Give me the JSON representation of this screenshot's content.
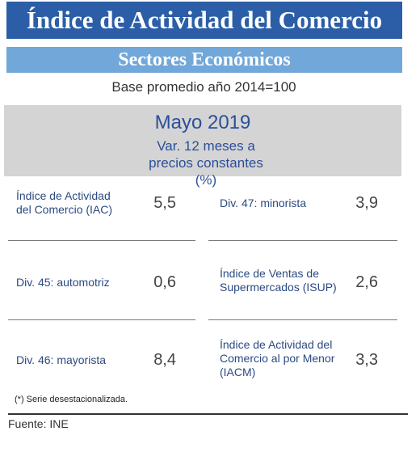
{
  "header": {
    "title": "Índice de Actividad del Comercio",
    "subtitle": "Sectores Económicos",
    "base": "Base promedio año 2014=100"
  },
  "period": {
    "title": "Mayo 2019",
    "subtitle": "Var. 12 meses a precios constantes (%)"
  },
  "items": [
    {
      "label": "Índice de Actividad del Comercio (IAC)",
      "value": "5,5"
    },
    {
      "label": "Div. 47: minorista",
      "value": "3,9"
    },
    {
      "label": "Div. 45: automotriz",
      "value": "0,6"
    },
    {
      "label": "Índice de Ventas de Supermercados (ISUP)",
      "value": "2,6"
    },
    {
      "label": "Div. 46: mayorista",
      "value": "8,4"
    },
    {
      "label": "Índice de Actividad del Comercio al por Menor (IACM)",
      "value": "3,3"
    }
  ],
  "footnote": "(*)  Serie desestacionalizada.",
  "source": "Fuente: INE"
}
